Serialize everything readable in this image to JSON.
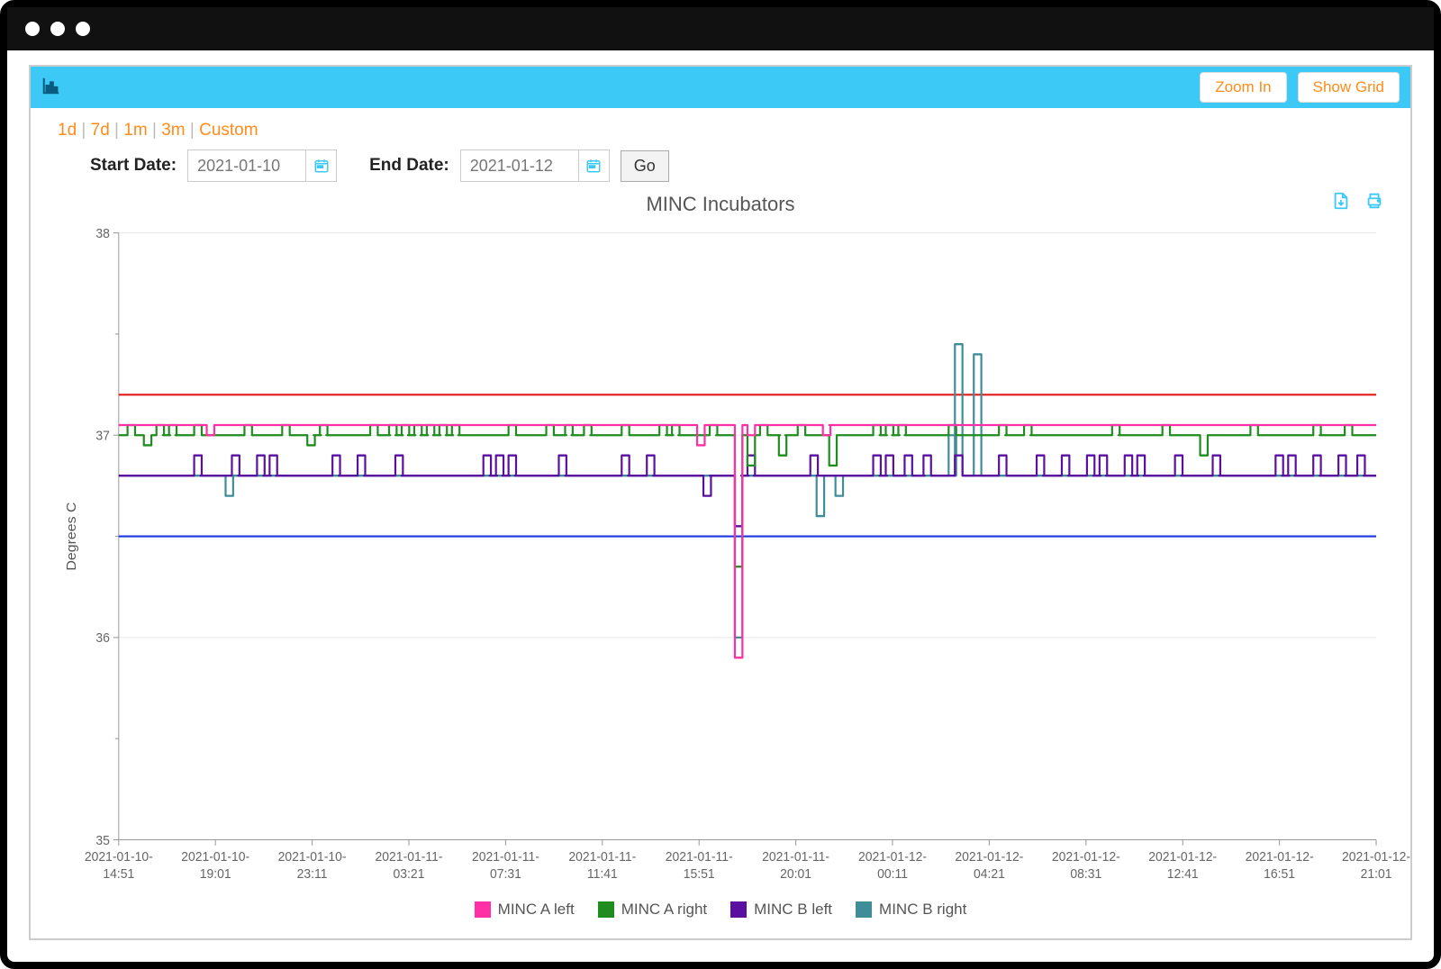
{
  "toolbar": {
    "zoom_label": "Zoom In",
    "grid_label": "Show Grid"
  },
  "range_links": [
    "1d",
    "7d",
    "1m",
    "3m",
    "Custom"
  ],
  "date_controls": {
    "start_label": "Start Date:",
    "end_label": "End Date:",
    "start_value": "2021-01-10",
    "end_value": "2021-01-12",
    "go_label": "Go"
  },
  "chart": {
    "title": "MINC Incubators",
    "ylabel": "Degrees C",
    "ylim": [
      35,
      38
    ],
    "yticks": [
      35,
      36,
      37,
      38
    ],
    "yminor_step": 0.5,
    "xticks": [
      "2021-01-10 14:51",
      "2021-01-10 19:01",
      "2021-01-10 23:11",
      "2021-01-11 03:21",
      "2021-01-11 07:31",
      "2021-01-11 11:41",
      "2021-01-11 15:51",
      "2021-01-11 20:01",
      "2021-01-12 00:11",
      "2021-01-12 04:21",
      "2021-01-12 08:31",
      "2021-01-12 12:41",
      "2021-01-12 16:51",
      "2021-01-12 21:01"
    ],
    "grid_color": "#e6e6e6",
    "tick_color": "#999",
    "background_color": "#ffffff",
    "axis_text_color": "#666",
    "line_width": 2.2,
    "ref_lines": [
      {
        "name": "upper-limit",
        "y": 37.2,
        "color": "#e31a1a",
        "width": 2
      },
      {
        "name": "lower-limit",
        "y": 36.5,
        "color": "#1a37e3",
        "width": 2
      }
    ],
    "legend": [
      {
        "name": "MINC A left",
        "color": "#ff2fa5"
      },
      {
        "name": "MINC A right",
        "color": "#1f8c1f"
      },
      {
        "name": "MINC B left",
        "color": "#5b0fa0"
      },
      {
        "name": "MINC B right",
        "color": "#3f8d99"
      }
    ],
    "series": {
      "mincAleft": {
        "color": "#ff2fa5",
        "base": 37.05,
        "jitter": [
          [
            0.07,
            37.0
          ],
          [
            0.085,
            37.05
          ],
          [
            0.46,
            36.95
          ],
          [
            0.47,
            37.05
          ],
          [
            0.49,
            35.9
          ],
          [
            0.5,
            37.0
          ],
          [
            0.52,
            37.05
          ],
          [
            0.56,
            37.0
          ],
          [
            0.565,
            37.05
          ]
        ]
      },
      "mincAright": {
        "color": "#1f8c1f",
        "base": 37.0,
        "jitter": [
          [
            0.007,
            37.05
          ],
          [
            0.02,
            36.95
          ],
          [
            0.03,
            37.05
          ],
          [
            0.035,
            37.0
          ],
          [
            0.04,
            37.05
          ],
          [
            0.045,
            37.0
          ],
          [
            0.06,
            37.05
          ],
          [
            0.07,
            37.0
          ],
          [
            0.1,
            37.05
          ],
          [
            0.11,
            37.0
          ],
          [
            0.13,
            37.05
          ],
          [
            0.14,
            37.0
          ],
          [
            0.15,
            36.95
          ],
          [
            0.155,
            37.0
          ],
          [
            0.16,
            37.05
          ],
          [
            0.165,
            37.0
          ],
          [
            0.2,
            37.05
          ],
          [
            0.21,
            37.0
          ],
          [
            0.215,
            37.05
          ],
          [
            0.22,
            37.0
          ],
          [
            0.225,
            37.05
          ],
          [
            0.23,
            37.0
          ],
          [
            0.235,
            37.05
          ],
          [
            0.24,
            37.0
          ],
          [
            0.245,
            37.05
          ],
          [
            0.25,
            37.0
          ],
          [
            0.255,
            37.05
          ],
          [
            0.26,
            37.0
          ],
          [
            0.265,
            37.05
          ],
          [
            0.27,
            37.0
          ],
          [
            0.31,
            37.05
          ],
          [
            0.32,
            37.0
          ],
          [
            0.34,
            37.05
          ],
          [
            0.35,
            37.0
          ],
          [
            0.355,
            37.05
          ],
          [
            0.36,
            37.0
          ],
          [
            0.37,
            37.05
          ],
          [
            0.375,
            37.0
          ],
          [
            0.4,
            37.05
          ],
          [
            0.41,
            37.0
          ],
          [
            0.43,
            37.05
          ],
          [
            0.435,
            37.0
          ],
          [
            0.44,
            37.05
          ],
          [
            0.445,
            37.0
          ],
          [
            0.47,
            37.05
          ],
          [
            0.475,
            37.0
          ],
          [
            0.49,
            36.35
          ],
          [
            0.5,
            36.85
          ],
          [
            0.51,
            37.05
          ],
          [
            0.52,
            37.0
          ],
          [
            0.525,
            36.9
          ],
          [
            0.53,
            37.0
          ],
          [
            0.54,
            37.05
          ],
          [
            0.55,
            37.0
          ],
          [
            0.565,
            36.85
          ],
          [
            0.575,
            37.0
          ],
          [
            0.6,
            37.05
          ],
          [
            0.605,
            37.0
          ],
          [
            0.61,
            37.05
          ],
          [
            0.615,
            37.0
          ],
          [
            0.62,
            37.05
          ],
          [
            0.625,
            37.0
          ],
          [
            0.66,
            37.05
          ],
          [
            0.67,
            37.0
          ],
          [
            0.7,
            37.05
          ],
          [
            0.705,
            37.0
          ],
          [
            0.72,
            37.05
          ],
          [
            0.725,
            37.0
          ],
          [
            0.79,
            37.05
          ],
          [
            0.795,
            37.0
          ],
          [
            0.83,
            37.05
          ],
          [
            0.84,
            37.0
          ],
          [
            0.86,
            36.9
          ],
          [
            0.87,
            37.0
          ],
          [
            0.9,
            37.05
          ],
          [
            0.91,
            37.0
          ],
          [
            0.95,
            37.05
          ],
          [
            0.955,
            37.0
          ],
          [
            0.975,
            37.05
          ],
          [
            0.985,
            37.0
          ]
        ]
      },
      "mincBleft": {
        "color": "#5b0fa0",
        "base": 36.8,
        "jitter": [
          [
            0.06,
            36.9
          ],
          [
            0.065,
            36.8
          ],
          [
            0.09,
            36.9
          ],
          [
            0.095,
            36.8
          ],
          [
            0.11,
            36.9
          ],
          [
            0.115,
            36.8
          ],
          [
            0.12,
            36.9
          ],
          [
            0.125,
            36.8
          ],
          [
            0.17,
            36.9
          ],
          [
            0.175,
            36.8
          ],
          [
            0.19,
            36.9
          ],
          [
            0.195,
            36.8
          ],
          [
            0.22,
            36.9
          ],
          [
            0.225,
            36.8
          ],
          [
            0.29,
            36.9
          ],
          [
            0.295,
            36.8
          ],
          [
            0.3,
            36.9
          ],
          [
            0.305,
            36.8
          ],
          [
            0.31,
            36.9
          ],
          [
            0.315,
            36.8
          ],
          [
            0.35,
            36.9
          ],
          [
            0.355,
            36.8
          ],
          [
            0.4,
            36.9
          ],
          [
            0.405,
            36.8
          ],
          [
            0.42,
            36.9
          ],
          [
            0.425,
            36.8
          ],
          [
            0.465,
            36.7
          ],
          [
            0.47,
            36.8
          ],
          [
            0.49,
            36.55
          ],
          [
            0.495,
            36.8
          ],
          [
            0.5,
            36.9
          ],
          [
            0.505,
            36.8
          ],
          [
            0.55,
            36.9
          ],
          [
            0.555,
            36.8
          ],
          [
            0.6,
            36.9
          ],
          [
            0.605,
            36.8
          ],
          [
            0.61,
            36.9
          ],
          [
            0.62,
            36.8
          ],
          [
            0.625,
            36.9
          ],
          [
            0.635,
            36.8
          ],
          [
            0.64,
            36.9
          ],
          [
            0.65,
            36.8
          ],
          [
            0.665,
            36.9
          ],
          [
            0.68,
            36.8
          ],
          [
            0.7,
            36.9
          ],
          [
            0.71,
            36.8
          ],
          [
            0.73,
            36.9
          ],
          [
            0.735,
            36.8
          ],
          [
            0.75,
            36.9
          ],
          [
            0.755,
            36.8
          ],
          [
            0.77,
            36.9
          ],
          [
            0.775,
            36.8
          ],
          [
            0.78,
            36.9
          ],
          [
            0.785,
            36.8
          ],
          [
            0.8,
            36.9
          ],
          [
            0.805,
            36.8
          ],
          [
            0.81,
            36.9
          ],
          [
            0.815,
            36.8
          ],
          [
            0.84,
            36.9
          ],
          [
            0.845,
            36.8
          ],
          [
            0.87,
            36.9
          ],
          [
            0.875,
            36.8
          ],
          [
            0.92,
            36.9
          ],
          [
            0.925,
            36.8
          ],
          [
            0.93,
            36.9
          ],
          [
            0.935,
            36.8
          ],
          [
            0.95,
            36.9
          ],
          [
            0.955,
            36.8
          ],
          [
            0.97,
            36.9
          ],
          [
            0.975,
            36.8
          ],
          [
            0.985,
            36.9
          ],
          [
            0.99,
            36.8
          ]
        ]
      },
      "mincBright": {
        "color": "#3f8d99",
        "base": 36.8,
        "jitter": [
          [
            0.085,
            36.7
          ],
          [
            0.09,
            36.8
          ],
          [
            0.49,
            36.0
          ],
          [
            0.5,
            36.8
          ],
          [
            0.555,
            36.6
          ],
          [
            0.57,
            36.7
          ],
          [
            0.58,
            36.8
          ],
          [
            0.66,
            37.0
          ],
          [
            0.665,
            37.45
          ],
          [
            0.68,
            37.4
          ],
          [
            0.69,
            36.8
          ]
        ]
      }
    }
  }
}
